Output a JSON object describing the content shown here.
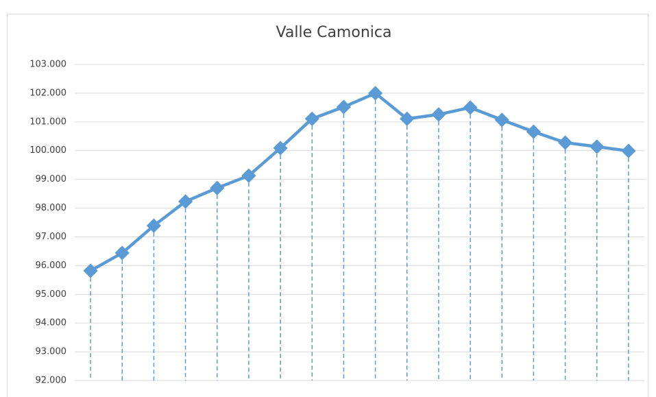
{
  "chart_data": {
    "type": "line",
    "title": "Valle Camonica",
    "categories": [
      null,
      null,
      null,
      null,
      null,
      null,
      null,
      null,
      null,
      null,
      null,
      null,
      null,
      null,
      null,
      null,
      null,
      null
    ],
    "series": [
      {
        "name": null,
        "color": "#5b9bd5",
        "values": [
          95820,
          96440,
          97390,
          98230,
          98700,
          99130,
          100090,
          101110,
          101520,
          102000,
          101110,
          101260,
          101500,
          101070,
          100660,
          100280,
          100140,
          99990
        ]
      }
    ],
    "ylim": [
      92000,
      103000
    ],
    "yticks": [
      {
        "value": 92000,
        "label": "92.000"
      },
      {
        "value": 93000,
        "label": "93.000"
      },
      {
        "value": 94000,
        "label": "94.000"
      },
      {
        "value": 95000,
        "label": "95.000"
      },
      {
        "value": 96000,
        "label": "96.000"
      },
      {
        "value": 97000,
        "label": "97.000"
      },
      {
        "value": 98000,
        "label": "98.000"
      },
      {
        "value": 99000,
        "label": "99.000"
      },
      {
        "value": 100000,
        "label": "100.000"
      },
      {
        "value": 101000,
        "label": "101.000"
      },
      {
        "value": 102000,
        "label": "102.000"
      },
      {
        "value": 103000,
        "label": "103.000"
      }
    ],
    "grid": true,
    "drop_lines": true
  }
}
